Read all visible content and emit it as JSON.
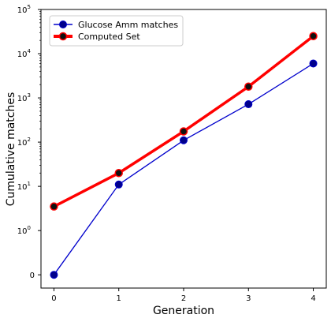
{
  "chart_data": {
    "type": "line",
    "x": [
      0,
      1,
      2,
      3,
      4
    ],
    "xlabel": "Generation",
    "ylabel": "Cumulative matches",
    "y_scale": "symlog",
    "ylim": [
      -0.3,
      100000
    ],
    "x_ticks": [
      "0",
      "1",
      "2",
      "3",
      "4"
    ],
    "y_ticks": [
      {
        "value": 0,
        "label": "0",
        "exp": ""
      },
      {
        "value": 1,
        "label": "10",
        "exp": "0"
      },
      {
        "value": 10,
        "label": "10",
        "exp": "1"
      },
      {
        "value": 100,
        "label": "10",
        "exp": "2"
      },
      {
        "value": 1000,
        "label": "10",
        "exp": "3"
      },
      {
        "value": 10000,
        "label": "10",
        "exp": "4"
      },
      {
        "value": 100000,
        "label": "10",
        "exp": "5"
      }
    ],
    "grid": false,
    "legend_position": "top-left",
    "series": [
      {
        "name": "Glucose Amm matches",
        "values": [
          0,
          11,
          110,
          720,
          6000
        ],
        "color": "#0000cc",
        "marker_color": "#00008b"
      },
      {
        "name": "Computed Set",
        "values": [
          3.5,
          20,
          175,
          1800,
          25000
        ],
        "color": "#ff0000",
        "marker_color": "#111111"
      }
    ]
  }
}
